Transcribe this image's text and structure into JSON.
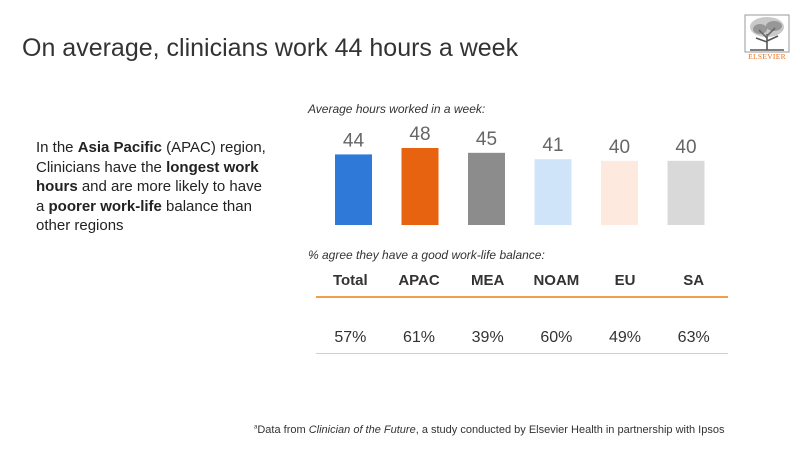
{
  "header": {
    "title": "On average, clinicians work 44 hours a week",
    "logo_text": "ELSEVIER"
  },
  "intro": {
    "p1": "In the ",
    "b1": "Asia Pacific",
    "p2": " (APAC) region, Clinicians have the ",
    "b2": "longest work hours",
    "p3": " and are more likely to have a ",
    "b3": "poorer work-life",
    "p4": " balance than other regions"
  },
  "chart_data": {
    "type": "bar",
    "title": "Average hours worked in a week:",
    "categories": [
      "Total",
      "APAC",
      "MEA",
      "NOAM",
      "EU",
      "SA"
    ],
    "values": [
      44,
      48,
      45,
      41,
      40,
      40
    ],
    "colors": [
      "#2f79d9",
      "#e8630f",
      "#8c8c8c",
      "#cfe4f8",
      "#fde9dd",
      "#d9d9d9"
    ],
    "xlabel": "",
    "ylabel": "",
    "ylim": [
      0,
      48
    ]
  },
  "balance_table": {
    "label": "% agree they have a good work-life balance:",
    "headers": [
      "Total",
      "APAC",
      "MEA",
      "NOAM",
      "EU",
      "SA"
    ],
    "values": [
      "57%",
      "61%",
      "39%",
      "60%",
      "49%",
      "63%"
    ]
  },
  "footnote": {
    "marker": "a",
    "prefix": "Data from ",
    "source": "Clinician of the Future",
    "suffix": ", a study conducted by Elsevier Health in partnership with Ipsos"
  }
}
